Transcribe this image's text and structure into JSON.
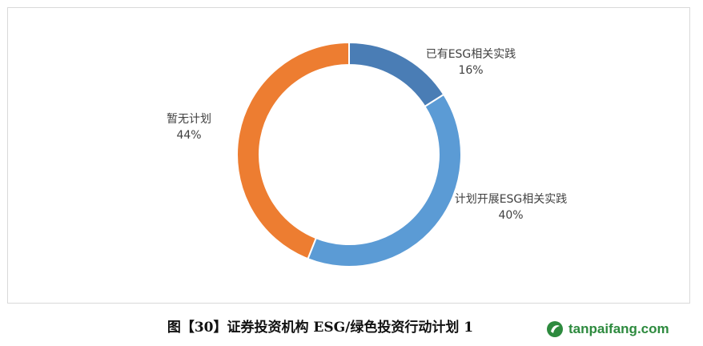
{
  "chart_data": {
    "type": "pie",
    "donut": true,
    "title": "",
    "slices": [
      {
        "label": "已有ESG相关实践",
        "value": 16,
        "display": "16%",
        "color": "#4a7db5"
      },
      {
        "label": "计划开展ESG相关实践",
        "value": 40,
        "display": "40%",
        "color": "#5b9bd5"
      },
      {
        "label": "暂无计划",
        "value": 44,
        "display": "44%",
        "color": "#ed7d31"
      }
    ],
    "legend": "none",
    "data_labels": "outside"
  },
  "caption": "图【30】证券投资机构 ESG/绿色投资行动计划 1",
  "watermark": {
    "text": "tanpaifang.com",
    "color": "#2d8a3e"
  }
}
